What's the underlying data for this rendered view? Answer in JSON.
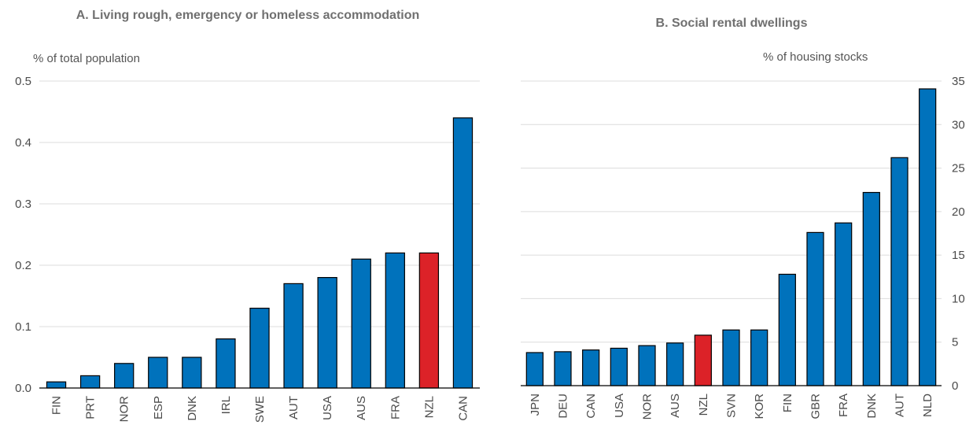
{
  "colors": {
    "bar": "#0072bc",
    "highlight": "#dc2228",
    "grid": "#dcdcdc",
    "axis": "#000000"
  },
  "chart_data": [
    {
      "type": "bar",
      "title": "A. Living rough, emergency or homeless accommodation",
      "ylabel": "% of total population",
      "categories": [
        "FIN",
        "PRT",
        "NOR",
        "ESP",
        "DNK",
        "IRL",
        "SWE",
        "AUT",
        "USA",
        "AUS",
        "FRA",
        "NZL",
        "CAN"
      ],
      "category_labels": [
        "FIN",
        "PRT",
        "NOR",
        "ESP",
        "DNK",
        "IRL",
        "SWE",
        "AUT",
        "USA",
        "AUS",
        "FRA",
        "NZL",
        "CAN"
      ],
      "values": [
        0.01,
        0.02,
        0.04,
        0.05,
        0.05,
        0.08,
        0.13,
        0.17,
        0.18,
        0.21,
        0.22,
        0.22,
        0.44
      ],
      "highlight": "NZL",
      "ylim": [
        0,
        0.5
      ],
      "yticks": [
        "0.0",
        "0.1",
        "0.2",
        "0.3",
        "0.4",
        "0.5"
      ],
      "axis_side": "left",
      "grid": true
    },
    {
      "type": "bar",
      "title": "B. Social rental dwellings",
      "ylabel": "% of housing stocks",
      "categories": [
        "JPN",
        "DEU",
        "CAN",
        "USA",
        "NOR",
        "AUS",
        "NZL",
        "SVN",
        "KOR",
        "FIN",
        "GBR",
        "FRA",
        "DNK",
        "AUT",
        "NLD"
      ],
      "category_labels": [
        "JPN",
        "DEU",
        "CAN",
        "USA",
        "NOR",
        "AUS",
        "NZL",
        "SVN",
        "KOR",
        "FIN",
        "GBR",
        "FRA",
        "DNK",
        "AUT",
        "NLD"
      ],
      "values": [
        3.8,
        3.9,
        4.1,
        4.3,
        4.6,
        4.9,
        5.8,
        6.4,
        6.4,
        12.8,
        17.6,
        18.7,
        22.2,
        26.2,
        34.1
      ],
      "highlight": "NZL",
      "ylim": [
        0,
        35
      ],
      "yticks": [
        "0",
        "5",
        "10",
        "15",
        "20",
        "25",
        "30",
        "35"
      ],
      "axis_side": "right",
      "grid": true
    }
  ]
}
